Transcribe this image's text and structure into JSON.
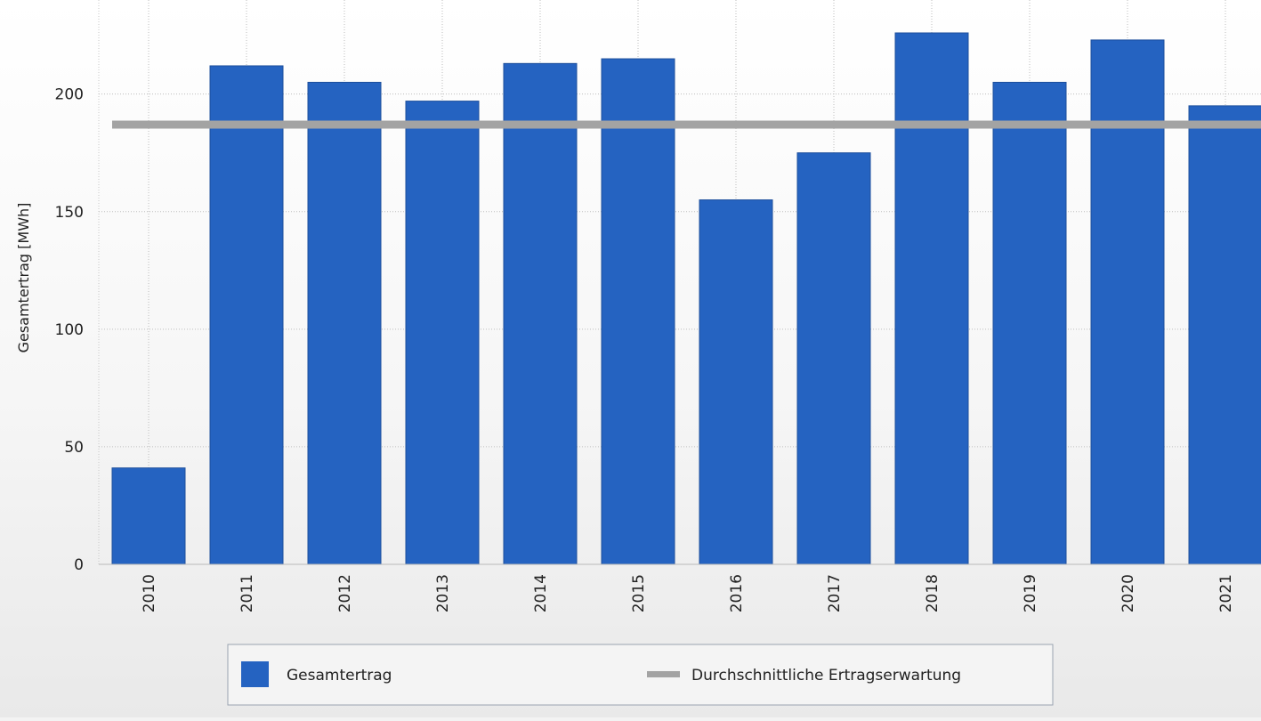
{
  "chart_data": {
    "type": "bar",
    "title": "",
    "xlabel": "",
    "ylabel": "Gesamtertrag [MWh]",
    "categories": [
      "2010",
      "2011",
      "2012",
      "2013",
      "2014",
      "2015",
      "2016",
      "2017",
      "2018",
      "2019",
      "2020",
      "2021"
    ],
    "series": [
      {
        "name": "Gesamtertrag",
        "type": "bar",
        "color": "#2563c1",
        "values": [
          41,
          212,
          205,
          197,
          213,
          215,
          155,
          175,
          226,
          205,
          223,
          195
        ]
      },
      {
        "name": "Durchschnittliche Ertragserwartung",
        "type": "line",
        "color": "#a3a3a3",
        "values": [
          187,
          187,
          187,
          187,
          187,
          187,
          187,
          187,
          187,
          187,
          187,
          187
        ]
      }
    ],
    "ylim": [
      0,
      240
    ],
    "yticks": [
      0,
      50,
      100,
      150,
      200
    ],
    "grid": true,
    "legend": "bottom"
  }
}
